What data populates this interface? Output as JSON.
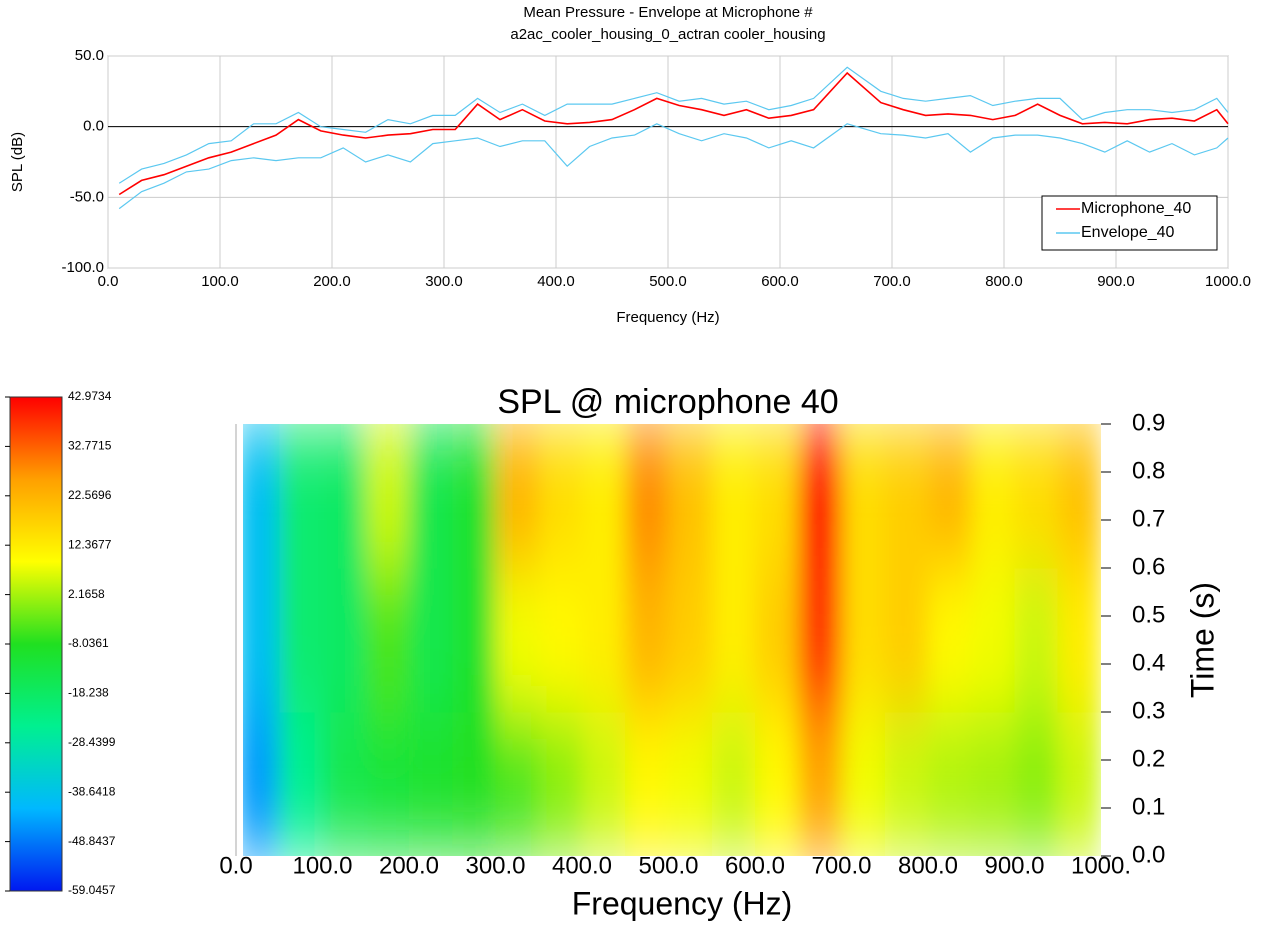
{
  "chart_data": [
    {
      "type": "line",
      "title": [
        "Mean Pressure - Envelope at Microphone #",
        "a2ac_cooler_housing_0_actran cooler_housing"
      ],
      "xlabel": "Frequency (Hz)",
      "ylabel": "SPL (dB)",
      "xlim": [
        0,
        1000
      ],
      "xticks": [
        {
          "value": 0,
          "label": "0.0"
        },
        {
          "value": 100,
          "label": "100.0"
        },
        {
          "value": 200,
          "label": "200.0"
        },
        {
          "value": 300,
          "label": "300.0"
        },
        {
          "value": 400,
          "label": "400.0"
        },
        {
          "value": 500,
          "label": "500.0"
        },
        {
          "value": 600,
          "label": "600.0"
        },
        {
          "value": 700,
          "label": "700.0"
        },
        {
          "value": 800,
          "label": "800.0"
        },
        {
          "value": 900,
          "label": "900.0"
        },
        {
          "value": 1000,
          "label": "1000.0"
        }
      ],
      "ylim": [
        -100,
        50
      ],
      "yticks": [
        {
          "value": -100,
          "label": "-100.0"
        },
        {
          "value": -50,
          "label": "-50.0"
        },
        {
          "value": 0,
          "label": "0.0"
        },
        {
          "value": 50,
          "label": "50.0"
        }
      ],
      "grid": true,
      "zero_line": true,
      "legend": "lower right",
      "x": [
        10,
        30,
        50,
        70,
        90,
        110,
        130,
        150,
        170,
        190,
        210,
        230,
        250,
        270,
        290,
        310,
        330,
        350,
        370,
        390,
        410,
        430,
        450,
        470,
        490,
        510,
        530,
        550,
        570,
        590,
        610,
        630,
        660,
        690,
        710,
        730,
        750,
        770,
        790,
        810,
        830,
        850,
        870,
        890,
        910,
        930,
        950,
        970,
        990,
        1000
      ],
      "series": [
        {
          "name": "Microphone_40",
          "color": "#ff0000",
          "values": [
            -48,
            -38,
            -34,
            -28,
            -22,
            -18,
            -12,
            -6,
            5,
            -3,
            -6,
            -8,
            -6,
            -5,
            -2,
            -2,
            16,
            5,
            12,
            4,
            2,
            3,
            5,
            12,
            20,
            15,
            12,
            8,
            12,
            6,
            8,
            12,
            38,
            17,
            12,
            8,
            9,
            8,
            5,
            8,
            16,
            8,
            2,
            3,
            2,
            5,
            6,
            4,
            12,
            2
          ]
        },
        {
          "name": "Envelope_40",
          "color": "#5bc8f0",
          "upper": [
            -40,
            -30,
            -26,
            -20,
            -12,
            -10,
            2,
            2,
            10,
            0,
            -2,
            -4,
            5,
            2,
            8,
            8,
            20,
            10,
            16,
            8,
            16,
            16,
            16,
            20,
            24,
            18,
            20,
            16,
            18,
            12,
            15,
            20,
            42,
            25,
            20,
            18,
            20,
            22,
            15,
            18,
            20,
            20,
            5,
            10,
            12,
            12,
            10,
            12,
            20,
            10
          ],
          "lower": [
            -58,
            -46,
            -40,
            -32,
            -30,
            -24,
            -22,
            -24,
            -22,
            -22,
            -15,
            -25,
            -20,
            -25,
            -12,
            -10,
            -8,
            -14,
            -10,
            -10,
            -28,
            -14,
            -8,
            -6,
            2,
            -5,
            -10,
            -5,
            -8,
            -15,
            -10,
            -15,
            2,
            -5,
            -6,
            -8,
            -5,
            -18,
            -8,
            -6,
            -6,
            -8,
            -12,
            -18,
            -10,
            -18,
            -12,
            -20,
            -15,
            -8
          ]
        }
      ]
    },
    {
      "type": "heatmap",
      "title": "SPL @ microphone 40",
      "xlabel": "Frequency (Hz)",
      "ylabel": "Time (s)",
      "xlim": [
        0,
        1000
      ],
      "xticks": [
        {
          "value": 0,
          "label": "0.0"
        },
        {
          "value": 100,
          "label": "100.0"
        },
        {
          "value": 200,
          "label": "200.0"
        },
        {
          "value": 300,
          "label": "300.0"
        },
        {
          "value": 400,
          "label": "400.0"
        },
        {
          "value": 500,
          "label": "500.0"
        },
        {
          "value": 600,
          "label": "600.0"
        },
        {
          "value": 700,
          "label": "700.0"
        },
        {
          "value": 800,
          "label": "800.0"
        },
        {
          "value": 900,
          "label": "900.0"
        },
        {
          "value": 1000,
          "label": "1000."
        }
      ],
      "ylim": [
        0,
        0.9
      ],
      "yticks": [
        {
          "value": 0,
          "label": "0.0"
        },
        0.1,
        0.2,
        0.3,
        0.4,
        0.5,
        0.6,
        0.7,
        0.8,
        0.9
      ],
      "xbins": [
        0,
        50,
        100,
        150,
        200,
        250,
        300,
        350,
        400,
        450,
        500,
        550,
        600,
        650,
        700,
        750,
        800,
        850,
        900,
        950,
        1000
      ],
      "ybins": [
        0,
        0.3,
        0.6,
        0.9
      ],
      "z": [
        [
          -45,
          -25,
          -15,
          -12,
          -10,
          -8,
          -5,
          0,
          5,
          10,
          8,
          5,
          10,
          25,
          8,
          5,
          3,
          2,
          0,
          5
        ],
        [
          -40,
          -20,
          -18,
          -5,
          -15,
          -10,
          8,
          10,
          12,
          22,
          18,
          12,
          18,
          38,
          15,
          18,
          10,
          8,
          5,
          12
        ],
        [
          -40,
          -20,
          -18,
          5,
          -15,
          -10,
          22,
          15,
          12,
          28,
          20,
          12,
          15,
          42,
          15,
          18,
          22,
          12,
          15,
          20
        ]
      ],
      "colorbar": {
        "clim": [
          -59.0457,
          42.9734
        ],
        "ticks": [
          42.9734,
          32.7715,
          22.5696,
          12.3677,
          2.1658,
          -8.0361,
          -18.238,
          -28.4399,
          -38.6418,
          -48.8437,
          -59.0457
        ],
        "colors": [
          "#0018f0",
          "#00b8ff",
          "#00f090",
          "#20e020",
          "#ffff00",
          "#ffa000",
          "#ff0000"
        ]
      }
    }
  ]
}
